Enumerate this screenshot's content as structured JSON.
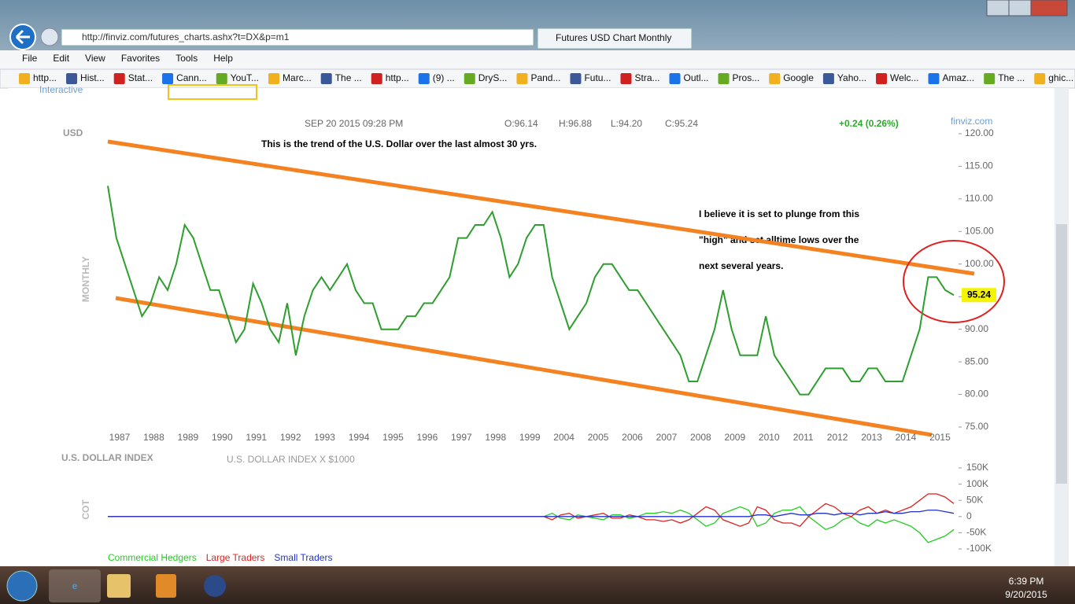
{
  "browser": {
    "url": "http://finviz.com/futures_charts.ashx?t=DX&p=m1",
    "tab_title": "Futures USD Chart Monthly",
    "menu": [
      "File",
      "Edit",
      "View",
      "Favorites",
      "Tools",
      "Help"
    ],
    "favorites": [
      "http...",
      "Hist...",
      "Stat...",
      "Cann...",
      "YouT...",
      "Marc...",
      "The ...",
      "http...",
      "(9) ...",
      "DryS...",
      "Pand...",
      "Futu...",
      "Stra...",
      "Outl...",
      "Pros...",
      "Google",
      "Yaho...",
      "Welc...",
      "Amaz...",
      "The ...",
      "ghic..."
    ],
    "page_tab": "Interactive"
  },
  "chart_data": [
    {
      "type": "line",
      "title": "USD",
      "y_label": "MONTHLY",
      "header": {
        "date": "SEP 20 2015 09:28 PM",
        "open": "O:96.14",
        "high": "H:96.88",
        "low": "L:94.20",
        "close": "C:95.24",
        "change": "+0.24 (0.26%)",
        "source": "finviz.com"
      },
      "annotations": [
        "This is the trend of the U.S. Dollar over the last almost 30 yrs.",
        "I believe it is set to plunge from this",
        "\"high\" and set alltime lows over the",
        "next several years."
      ],
      "categories": [
        "1987",
        null,
        null,
        null,
        "1988",
        null,
        null,
        null,
        "1989",
        null,
        null,
        null,
        "1990",
        null,
        null,
        null,
        "1991",
        null,
        null,
        null,
        "1992",
        null,
        null,
        null,
        "1993",
        null,
        null,
        null,
        "1994",
        null,
        null,
        null,
        "1995",
        null,
        null,
        null,
        "1996",
        null,
        null,
        null,
        "1997",
        null,
        null,
        null,
        "1998",
        null,
        null,
        null,
        "1999",
        null,
        null,
        null,
        "2004",
        null,
        null,
        null,
        "2005",
        null,
        null,
        null,
        "2006",
        null,
        null,
        null,
        "2007",
        null,
        null,
        null,
        "2008",
        null,
        null,
        null,
        "2009",
        null,
        null,
        null,
        "2010",
        null,
        null,
        null,
        "2011",
        null,
        null,
        null,
        "2012",
        null,
        null,
        null,
        "2013",
        null,
        null,
        null,
        "2014",
        null,
        null,
        null,
        "2015",
        null,
        null,
        null
      ],
      "values": [
        112,
        104,
        100,
        96,
        92,
        94,
        98,
        96,
        100,
        106,
        104,
        100,
        96,
        96,
        92,
        88,
        90,
        97,
        94,
        90,
        88,
        94,
        86,
        92,
        96,
        98,
        96,
        98,
        100,
        96,
        94,
        94,
        90,
        90,
        90,
        92,
        92,
        94,
        94,
        96,
        98,
        104,
        104,
        106,
        106,
        108,
        104,
        98,
        100,
        104,
        106,
        106,
        98,
        94,
        90,
        92,
        94,
        98,
        100,
        100,
        98,
        96,
        96,
        94,
        92,
        90,
        88,
        86,
        82,
        82,
        86,
        90,
        96,
        90,
        86,
        86,
        86,
        92,
        86,
        84,
        82,
        80,
        80,
        82,
        84,
        84,
        84,
        82,
        82,
        84,
        84,
        82,
        82,
        82,
        86,
        90,
        98,
        98,
        96,
        95.24
      ],
      "color": "#2e9e2e",
      "last_price": 95.24,
      "ylim": [
        75,
        120
      ],
      "yticks": [
        {
          "value": 75,
          "label": "75.00"
        },
        {
          "value": 80,
          "label": "80.00"
        },
        {
          "value": 85,
          "label": "85.00"
        },
        {
          "value": 90,
          "label": "90.00"
        },
        {
          "value": 95,
          "label": "95.00"
        },
        {
          "value": 100,
          "label": "100.00"
        },
        {
          "value": 105,
          "label": "105.00"
        },
        {
          "value": 110,
          "label": "110.00"
        },
        {
          "value": 115,
          "label": "115.00"
        },
        {
          "value": 120,
          "label": "120.00"
        }
      ]
    },
    {
      "type": "line",
      "title": "U.S. DOLLAR INDEX",
      "subtitle": "U.S. DOLLAR INDEX X $1000",
      "y_label": "COT",
      "legend": "bottom-left",
      "series": [
        {
          "name": "Commercial Hedgers",
          "color": "#22cc22",
          "values": [
            0,
            0,
            0,
            0,
            0,
            0,
            0,
            0,
            0,
            0,
            0,
            0,
            0,
            0,
            0,
            0,
            0,
            0,
            0,
            0,
            0,
            0,
            0,
            0,
            0,
            0,
            0,
            0,
            0,
            0,
            0,
            0,
            0,
            0,
            0,
            0,
            0,
            0,
            0,
            0,
            0,
            0,
            0,
            0,
            0,
            0,
            0,
            0,
            0,
            0,
            0,
            0,
            10000,
            -5000,
            -10000,
            5000,
            0,
            -5000,
            -10000,
            5000,
            5000,
            -5000,
            0,
            10000,
            10000,
            15000,
            10000,
            20000,
            10000,
            -10000,
            -30000,
            -20000,
            10000,
            20000,
            30000,
            20000,
            -30000,
            -20000,
            10000,
            20000,
            20000,
            30000,
            0,
            -20000,
            -40000,
            -30000,
            -10000,
            0,
            -20000,
            -30000,
            -10000,
            -20000,
            -10000,
            -20000,
            -30000,
            -50000,
            -80000,
            -70000,
            -60000,
            -40000
          ]
        },
        {
          "name": "Large Traders",
          "color": "#dd2222",
          "values": [
            0,
            0,
            0,
            0,
            0,
            0,
            0,
            0,
            0,
            0,
            0,
            0,
            0,
            0,
            0,
            0,
            0,
            0,
            0,
            0,
            0,
            0,
            0,
            0,
            0,
            0,
            0,
            0,
            0,
            0,
            0,
            0,
            0,
            0,
            0,
            0,
            0,
            0,
            0,
            0,
            0,
            0,
            0,
            0,
            0,
            0,
            0,
            0,
            0,
            0,
            0,
            0,
            -10000,
            5000,
            10000,
            -5000,
            0,
            5000,
            10000,
            -5000,
            -5000,
            5000,
            0,
            -10000,
            -10000,
            -15000,
            -10000,
            -20000,
            -10000,
            10000,
            30000,
            20000,
            -10000,
            -20000,
            -30000,
            -20000,
            30000,
            20000,
            -10000,
            -20000,
            -20000,
            -30000,
            0,
            20000,
            40000,
            30000,
            10000,
            0,
            20000,
            30000,
            10000,
            20000,
            10000,
            20000,
            30000,
            50000,
            70000,
            70000,
            60000,
            40000
          ]
        },
        {
          "name": "Small Traders",
          "color": "#2233cc",
          "values": [
            0,
            0,
            0,
            0,
            0,
            0,
            0,
            0,
            0,
            0,
            0,
            0,
            0,
            0,
            0,
            0,
            0,
            0,
            0,
            0,
            0,
            0,
            0,
            0,
            0,
            0,
            0,
            0,
            0,
            0,
            0,
            0,
            0,
            0,
            0,
            0,
            0,
            0,
            0,
            0,
            0,
            0,
            0,
            0,
            0,
            0,
            0,
            0,
            0,
            0,
            0,
            0,
            0,
            0,
            0,
            0,
            0,
            0,
            0,
            0,
            0,
            0,
            0,
            0,
            0,
            0,
            0,
            0,
            0,
            0,
            0,
            0,
            0,
            0,
            0,
            0,
            5000,
            5000,
            0,
            5000,
            10000,
            5000,
            5000,
            10000,
            10000,
            5000,
            10000,
            10000,
            5000,
            10000,
            10000,
            15000,
            10000,
            10000,
            15000,
            15000,
            20000,
            20000,
            15000,
            10000
          ]
        }
      ],
      "ylim": [
        -100000,
        150000
      ],
      "yticks": [
        {
          "value": 150000,
          "label": "150K"
        },
        {
          "value": 100000,
          "label": "100K"
        },
        {
          "value": 50000,
          "label": "50K"
        },
        0,
        {
          "value": -50000,
          "label": "-50K"
        },
        {
          "value": -100000,
          "label": "-100K"
        }
      ]
    }
  ],
  "taskbar": {
    "time": "6:39 PM",
    "date": "9/20/2015"
  }
}
